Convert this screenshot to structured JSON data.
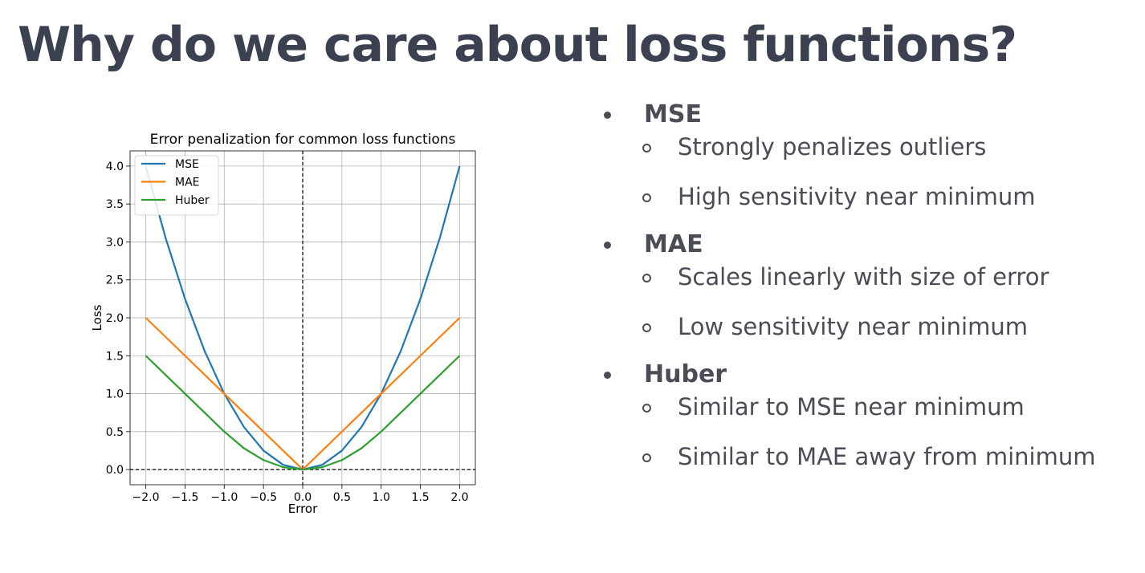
{
  "slide": {
    "title": "Why do we care about loss functions?"
  },
  "bullets": [
    {
      "title": "MSE",
      "subs": [
        "Strongly penalizes outliers",
        "High sensitivity near minimum"
      ]
    },
    {
      "title": "MAE",
      "subs": [
        "Scales linearly with size of error",
        "Low sensitivity near minimum"
      ]
    },
    {
      "title": "Huber",
      "subs": [
        "Similar to MSE near minimum",
        "Similar to MAE away from minimum"
      ]
    }
  ],
  "chart_data": {
    "type": "line",
    "title": "Error penalization for common loss functions",
    "xlabel": "Error",
    "ylabel": "Loss",
    "xlim": [
      -2.2,
      2.2
    ],
    "ylim": [
      -0.2,
      4.2
    ],
    "xticks": [
      "−2.0",
      "−1.5",
      "−1.0",
      "−0.5",
      "0.0",
      "0.5",
      "1.0",
      "1.5",
      "2.0"
    ],
    "yticks": [
      "0.0",
      "0.5",
      "1.0",
      "1.5",
      "2.0",
      "2.5",
      "3.0",
      "3.5",
      "4.0"
    ],
    "grid": true,
    "legend_position": "top-left",
    "reference_lines": {
      "x": 0,
      "y": 0
    },
    "x": [
      -2.0,
      -1.75,
      -1.5,
      -1.25,
      -1.0,
      -0.75,
      -0.5,
      -0.25,
      0.0,
      0.25,
      0.5,
      0.75,
      1.0,
      1.25,
      1.5,
      1.75,
      2.0
    ],
    "series": [
      {
        "name": "MSE",
        "color": "#1f77b4",
        "values": [
          4.0,
          3.0625,
          2.25,
          1.5625,
          1.0,
          0.5625,
          0.25,
          0.0625,
          0.0,
          0.0625,
          0.25,
          0.5625,
          1.0,
          1.5625,
          2.25,
          3.0625,
          4.0
        ]
      },
      {
        "name": "MAE",
        "color": "#ff7f0e",
        "values": [
          2.0,
          1.75,
          1.5,
          1.25,
          1.0,
          0.75,
          0.5,
          0.25,
          0.0,
          0.25,
          0.5,
          0.75,
          1.0,
          1.25,
          1.5,
          1.75,
          2.0
        ]
      },
      {
        "name": "Huber",
        "color": "#2ca02c",
        "values": [
          1.5,
          1.25,
          1.0,
          0.75,
          0.5,
          0.28125,
          0.125,
          0.03125,
          0.0,
          0.03125,
          0.125,
          0.28125,
          0.5,
          0.75,
          1.0,
          1.25,
          1.5
        ]
      }
    ]
  }
}
